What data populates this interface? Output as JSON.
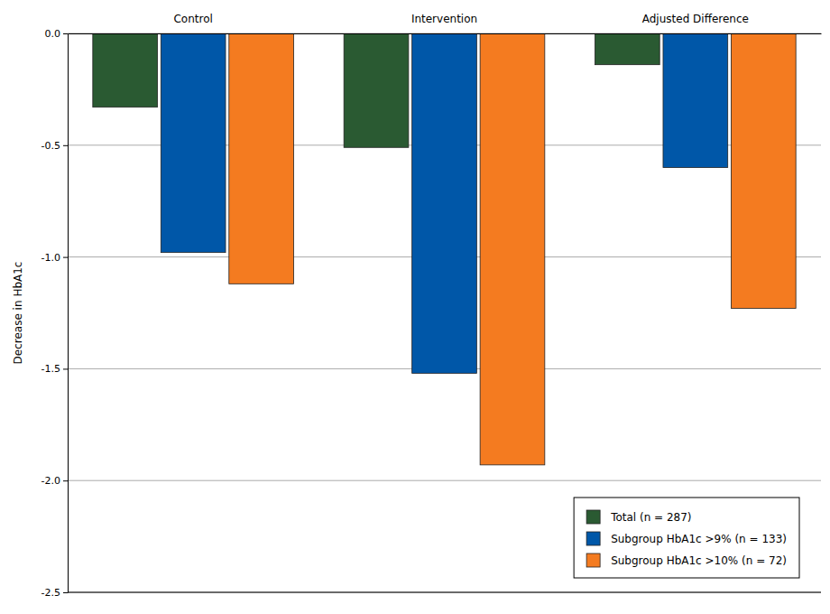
{
  "chart_data": {
    "type": "bar",
    "categories": [
      "Control",
      "Intervention",
      "Adjusted Difference"
    ],
    "ylabel": "Decrease in HbA1c",
    "series": [
      {
        "name": "Total (n = 287)",
        "color": "#2a5a32",
        "values": [
          -0.33,
          -0.51,
          -0.14
        ]
      },
      {
        "name": "Subgroup HbA1c >9% (n = 133)",
        "color": "#0057a8",
        "values": [
          -0.98,
          -1.52,
          -0.6
        ]
      },
      {
        "name": "Subgroup HbA1c >10% (n = 72)",
        "color": "#f47b20",
        "values": [
          -1.12,
          -1.93,
          -1.23
        ]
      }
    ],
    "ylim": [
      -2.5,
      0
    ],
    "yticks": [
      {
        "value": 0,
        "label": "0.0"
      },
      -0.5,
      {
        "value": -1,
        "label": "-1.0"
      },
      -1.5,
      {
        "value": -2,
        "label": "-2.0"
      },
      -2.5
    ],
    "grid": true,
    "legend": "lower right"
  }
}
